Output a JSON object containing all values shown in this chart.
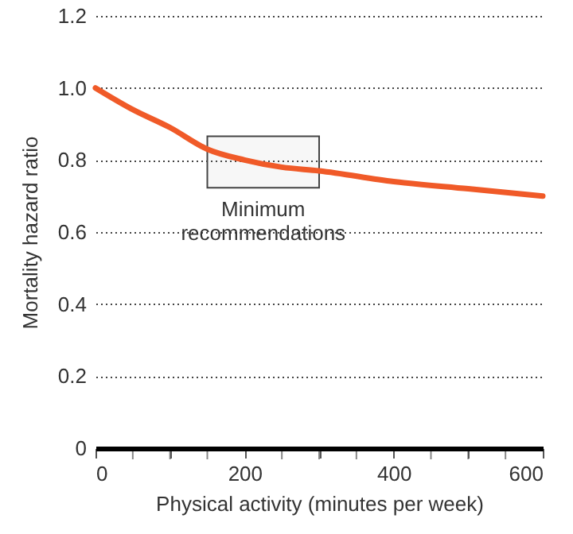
{
  "chart_data": {
    "type": "line",
    "xlabel": "Physical activity (minutes per week)",
    "ylabel": "Mortality hazard ratio",
    "x": [
      0,
      50,
      100,
      150,
      200,
      250,
      300,
      400,
      500,
      600
    ],
    "series": [
      {
        "color": "#f05a28",
        "values": [
          1.0,
          0.94,
          0.89,
          0.83,
          0.8,
          0.78,
          0.77,
          0.74,
          0.72,
          0.7
        ]
      }
    ],
    "xlim": [
      0,
      600
    ],
    "xticks": [
      0,
      {
        "value": 50,
        "label": null
      },
      {
        "value": 100,
        "label": null
      },
      {
        "value": 150,
        "label": null
      },
      200,
      {
        "value": 250,
        "label": null
      },
      {
        "value": 300,
        "label": null
      },
      {
        "value": 350,
        "label": null
      },
      400,
      {
        "value": 450,
        "label": null
      },
      {
        "value": 500,
        "label": null
      },
      {
        "value": 550,
        "label": null
      },
      600
    ],
    "ylim": [
      0,
      1.2
    ],
    "yticks": [
      0,
      0.2,
      0.4,
      0.6,
      0.8,
      {
        "value": 1,
        "label": "1.0"
      },
      1.2
    ],
    "grid": "y",
    "marker": "none",
    "line_style": "solid",
    "bands": [
      {
        "axis": "x",
        "from": 150,
        "to": 300,
        "label": "Minimum recommendations"
      }
    ]
  }
}
